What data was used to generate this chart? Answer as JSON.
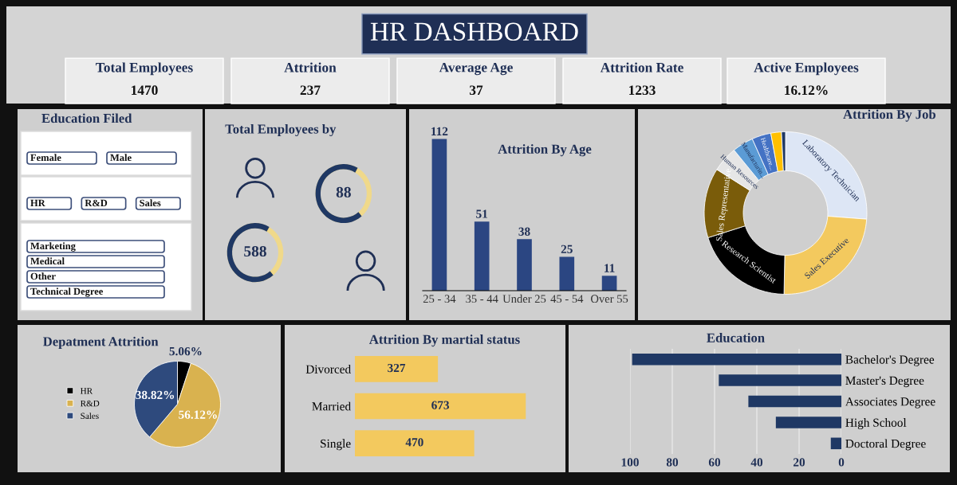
{
  "chart_data": [
    {
      "type": "other",
      "title": "HR DASHBOARD",
      "annotations": [
        "Total Employees",
        "1470",
        "Attrition",
        "237",
        "Average Age",
        "37",
        "Attrition Rate",
        "1233",
        "Active Employees",
        "16.12%"
      ]
    },
    {
      "type": "other",
      "title": "Education Filed",
      "annotations": [
        "Female",
        "Male",
        "HR",
        "R&D",
        "Sales",
        "Marketing",
        "Medical",
        "Other",
        "Technical Degree"
      ]
    },
    {
      "type": "other",
      "title": "Total Employees by",
      "annotations": [
        "88",
        "588"
      ]
    },
    {
      "type": "bar",
      "title": "Attrition By Age",
      "categories": [
        "25 - 34",
        "35 - 44",
        "Under 25",
        "45 - 54",
        "Over 55"
      ],
      "values": [
        112,
        51,
        38,
        25,
        11
      ],
      "color": "#2b4682",
      "data_labels": true
    },
    {
      "type": "donut",
      "title": "Attrition By Job",
      "categories": [
        "Laboratory Technician",
        "Sales Executive",
        "Research Scientist",
        "Sales Representative",
        "Human Resources",
        "Manufacturin...",
        "Healthcare...",
        null,
        null
      ],
      "values": [
        26.2,
        24.1,
        19.8,
        13.9,
        5.1,
        4.2,
        3.8,
        2.1,
        0.8
      ],
      "colors": [
        "#dde6f5",
        "#f3c95e",
        "#000000",
        "#7a5c0a",
        "#e6e6e6",
        "#5b9bd5",
        "#4472c4",
        "#ffc000",
        "#1f3864"
      ]
    },
    {
      "type": "pie",
      "title": "Depatment Attrition",
      "categories": [
        "HR",
        "R&D",
        "Sales"
      ],
      "values": [
        5.06,
        56.12,
        38.82
      ],
      "value_labels": [
        "5.06%",
        "56.12%",
        "38.82%"
      ],
      "colors": [
        "#000000",
        "#d9b24f",
        "#2e4a7d"
      ],
      "legend": "left"
    },
    {
      "type": "bar",
      "orientation": "horizontal",
      "title": "Attrition By martial status",
      "categories": [
        "Divorced",
        "Married",
        "Single"
      ],
      "values": [
        327,
        673,
        470
      ],
      "color": "#f3c95e",
      "data_labels": true
    },
    {
      "type": "bar",
      "orientation": "horizontal",
      "title": "Education",
      "categories": [
        "Bachelor's Degree",
        "Master's Degree",
        "Associates Degree",
        "High School",
        "Doctoral Degree"
      ],
      "values": [
        99,
        58,
        44,
        31,
        5
      ],
      "color": "#1f3864",
      "xlim": [
        100,
        0
      ],
      "xticks": [
        100,
        80,
        60,
        40,
        20,
        0
      ],
      "grid": "x"
    }
  ]
}
